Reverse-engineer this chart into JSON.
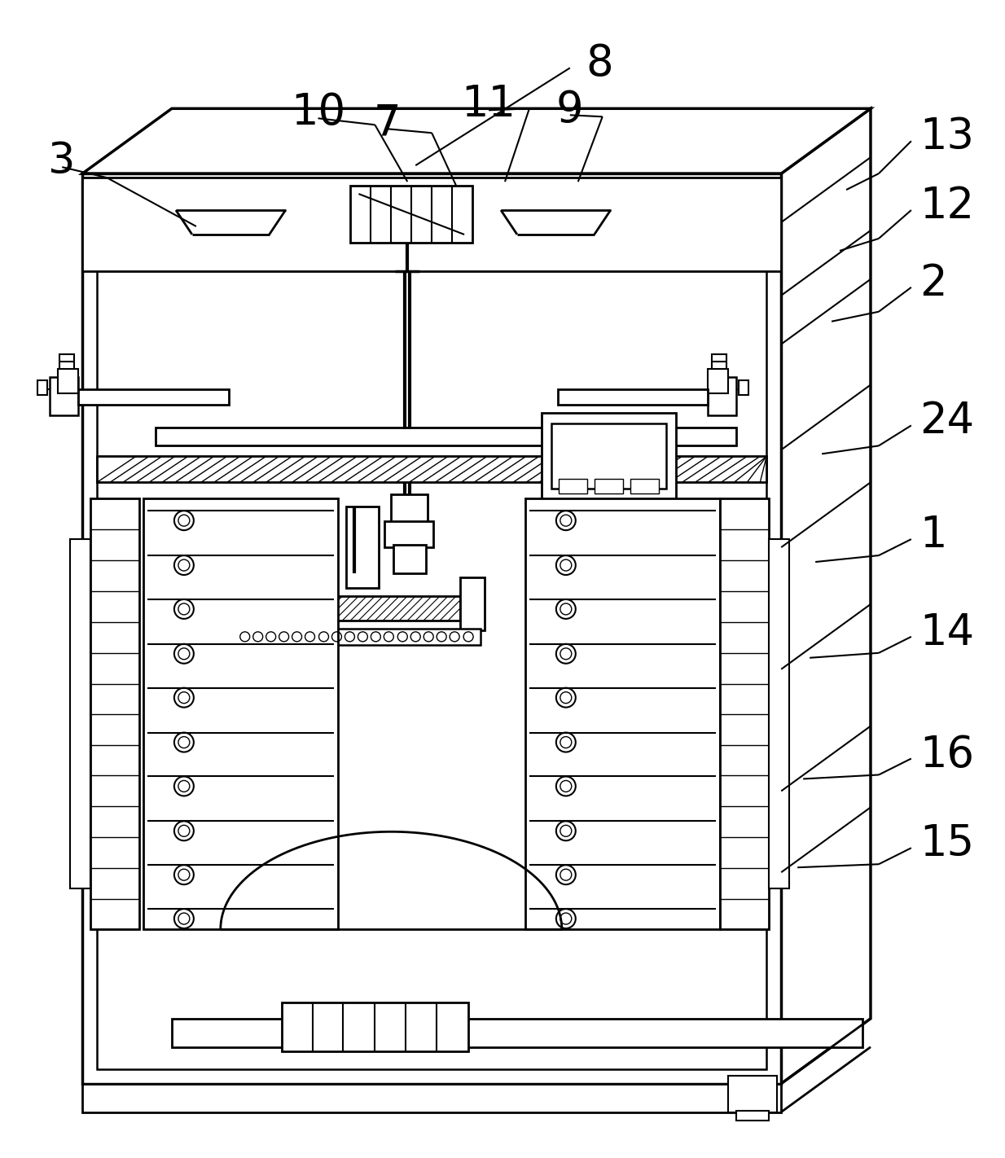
{
  "bg_color": "#ffffff",
  "line_color": "#000000",
  "lw": 1.8,
  "fig_width": 12.34,
  "fig_height": 14.22
}
